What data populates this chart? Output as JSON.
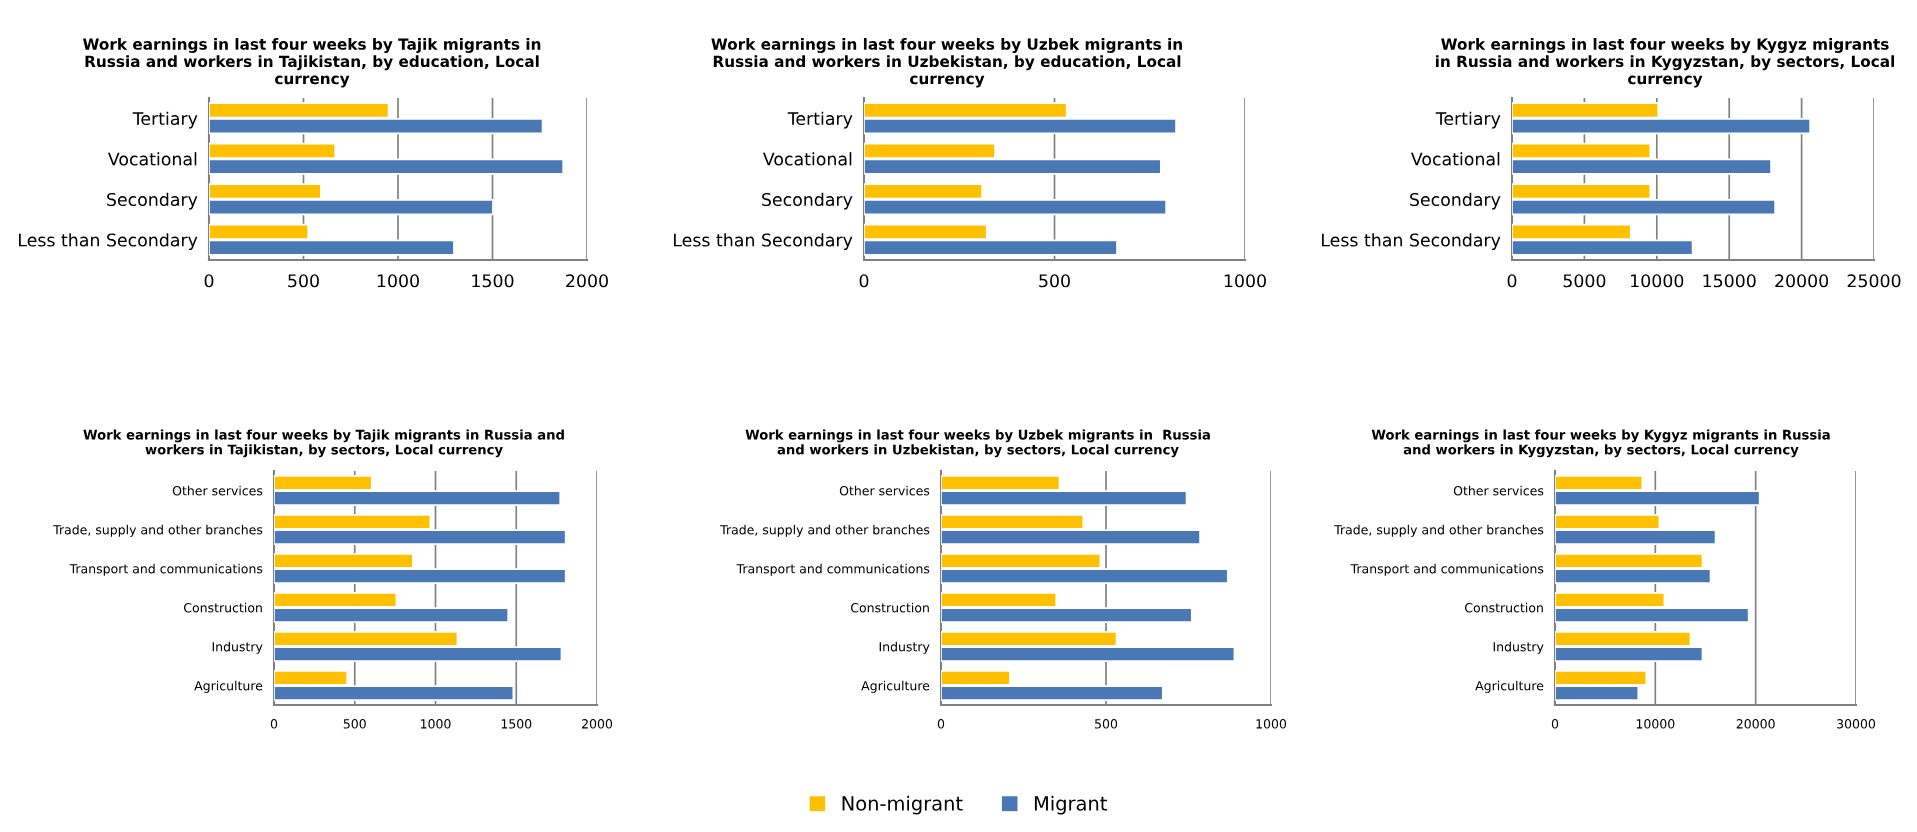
{
  "chart_data": [
    {
      "type": "bar",
      "orientation": "horizontal",
      "title": "Work earnings in last four weeks by Tajik migrants in\nRussia and workers in Tajikistan, by education, Local\ncurrency",
      "categories": [
        "Tertiary",
        "Vocational",
        "Secondary",
        "Less than Secondary"
      ],
      "xlim": [
        0,
        2000
      ],
      "xticks": [
        0,
        500,
        1000,
        1500,
        2000
      ],
      "grid": "x",
      "legend": "bottom",
      "series": [
        {
          "name": "Non-migrant",
          "color": "#ffc000",
          "values": [
            950,
            668,
            592,
            525
          ]
        },
        {
          "name": "Migrant",
          "color": "#4a78b4",
          "values": [
            1765,
            1874,
            1502,
            1296
          ]
        }
      ]
    },
    {
      "type": "bar",
      "orientation": "horizontal",
      "title": "Work earnings in last four weeks by Uzbek migrants in\nRussia and workers in Uzbekistan, by education, Local\ncurrency",
      "categories": [
        "Tertiary",
        "Vocational",
        "Secondary",
        "Less than Secondary"
      ],
      "xlim": [
        0,
        1000
      ],
      "xticks": [
        0,
        500,
        1000
      ],
      "grid": "x",
      "legend": "bottom",
      "series": [
        {
          "name": "Non-migrant",
          "color": "#ffc000",
          "values": [
            532,
            344,
            310,
            322
          ]
        },
        {
          "name": "Migrant",
          "color": "#4a78b4",
          "values": [
            819,
            779,
            793,
            664
          ]
        }
      ]
    },
    {
      "type": "bar",
      "orientation": "horizontal",
      "title": "Work earnings in last four weeks by Kygyz migrants\nin Russia and workers in Kygyzstan, by sectors, Local\ncurrency",
      "categories": [
        "Tertiary",
        "Vocational",
        "Secondary",
        "Less than Secondary"
      ],
      "xlim": [
        0,
        25000
      ],
      "xticks": [
        0,
        5000,
        10000,
        15000,
        20000,
        25000
      ],
      "grid": "x",
      "legend": "bottom",
      "series": [
        {
          "name": "Non-migrant",
          "color": "#ffc000",
          "values": [
            10100,
            9550,
            9550,
            8200
          ]
        },
        {
          "name": "Migrant",
          "color": "#4a78b4",
          "values": [
            20590,
            17890,
            18170,
            12470
          ]
        }
      ]
    },
    {
      "type": "bar",
      "orientation": "horizontal",
      "title": "Work earnings in last four weeks by Tajik migrants in Russia and\nworkers in Tajikistan, by sectors, Local currency",
      "categories": [
        "Other services",
        "Trade, supply and other branches",
        "Transport and communications",
        "Construction",
        "Industry",
        "Agriculture"
      ],
      "xlim": [
        0,
        2000
      ],
      "xticks": [
        0,
        500,
        1000,
        1500,
        2000
      ],
      "grid": "x",
      "legend": "bottom",
      "series": [
        {
          "name": "Non-migrant",
          "color": "#ffc000",
          "values": [
            605,
            968,
            860,
            758,
            1136,
            453
          ]
        },
        {
          "name": "Migrant",
          "color": "#4a78b4",
          "values": [
            1772,
            1806,
            1806,
            1450,
            1780,
            1482
          ]
        }
      ]
    },
    {
      "type": "bar",
      "orientation": "horizontal",
      "title": "Work earnings in last four weeks by Uzbek migrants in  Russia\nand workers in Uzbekistan, by sectors, Local currency",
      "categories": [
        "Other services",
        "Trade, supply and other branches",
        "Transport and communications",
        "Construction",
        "Industry",
        "Agriculture"
      ],
      "xlim": [
        0,
        1000
      ],
      "xticks": [
        0,
        500,
        1000
      ],
      "grid": "x",
      "legend": "bottom",
      "series": [
        {
          "name": "Non-migrant",
          "color": "#ffc000",
          "values": [
            359,
            431,
            483,
            349,
            532,
            209
          ]
        },
        {
          "name": "Migrant",
          "color": "#4a78b4",
          "values": [
            744,
            785,
            869,
            760,
            889,
            672
          ]
        }
      ]
    },
    {
      "type": "bar",
      "orientation": "horizontal",
      "title": "Work earnings in last four weeks by Kygyz migrants in Russia\nand workers in Kygyzstan, by sectors, Local currency",
      "categories": [
        "Other services",
        "Trade, supply and other branches",
        "Transport and communications",
        "Construction",
        "Industry",
        "Agriculture"
      ],
      "xlim": [
        0,
        30000
      ],
      "xticks": [
        0,
        10000,
        20000,
        30000
      ],
      "grid": "x",
      "legend": "bottom",
      "series": [
        {
          "name": "Non-migrant",
          "color": "#ffc000",
          "values": [
            8700,
            10400,
            14700,
            10900,
            13500,
            9100
          ]
        },
        {
          "name": "Migrant",
          "color": "#4a78b4",
          "values": [
            20400,
            16000,
            15500,
            19300,
            14700,
            8300
          ]
        }
      ]
    }
  ]
}
